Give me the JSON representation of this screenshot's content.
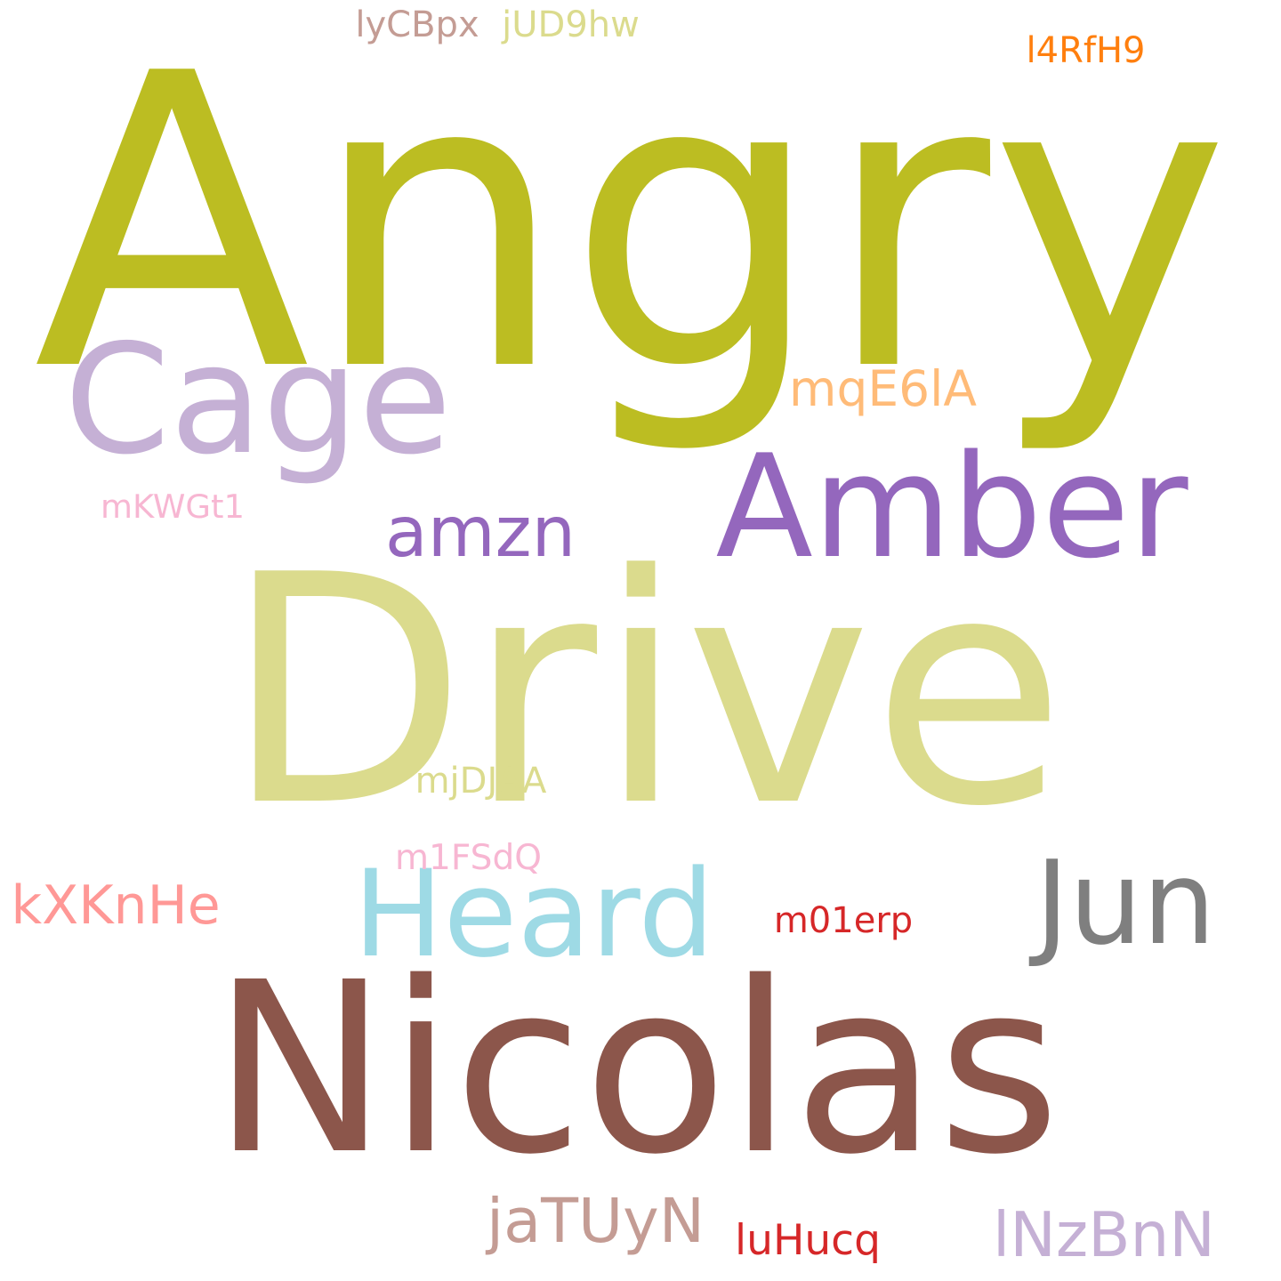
{
  "words": [
    {
      "text": "Angry",
      "color": "#bcbd22"
    },
    {
      "text": "Drive",
      "color": "#dbdb8d"
    },
    {
      "text": "Nicolas",
      "color": "#8c564b"
    },
    {
      "text": "Cage",
      "color": "#c5b0d5"
    },
    {
      "text": "Amber",
      "color": "#9467bd"
    },
    {
      "text": "amzn",
      "color": "#9467bd"
    },
    {
      "text": "Heard",
      "color": "#9edae5"
    },
    {
      "text": "Jun",
      "color": "#7f7f7f"
    },
    {
      "text": "mqE6lA",
      "color": "#ffbb78"
    },
    {
      "text": "lyCBpx",
      "color": "#c49c94"
    },
    {
      "text": "jUD9hw",
      "color": "#dbdb8d"
    },
    {
      "text": "l4RfH9",
      "color": "#ff7f0e"
    },
    {
      "text": "mKWGt1",
      "color": "#f7b6d2"
    },
    {
      "text": "mjDJAA",
      "color": "#dbdb8d"
    },
    {
      "text": "m1FSdQ",
      "color": "#f7b6d2"
    },
    {
      "text": "kXKnHe",
      "color": "#ff9896"
    },
    {
      "text": "m01erp",
      "color": "#d62728"
    },
    {
      "text": "jaTUyN",
      "color": "#c49c94"
    },
    {
      "text": "luHucq",
      "color": "#d62728"
    },
    {
      "text": "lNzBnN",
      "color": "#c5b0d5"
    }
  ]
}
